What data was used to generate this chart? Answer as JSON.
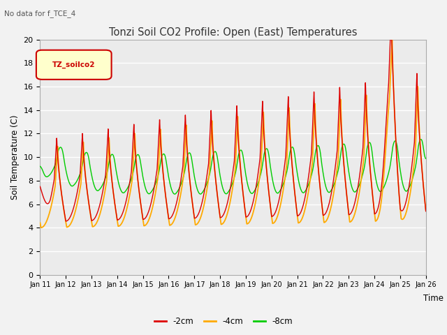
{
  "title": "Tonzi Soil CO2 Profile: Open (East) Temperatures",
  "subtitle": "No data for f_TCE_4",
  "ylabel": "Soil Temperature (C)",
  "xlabel": "Time",
  "ylim": [
    0,
    20
  ],
  "yticks": [
    0,
    2,
    4,
    6,
    8,
    10,
    12,
    14,
    16,
    18,
    20
  ],
  "xtick_labels": [
    "Jan 11",
    "Jan 12",
    "Jan 13",
    "Jan 14",
    "Jan 15",
    "Jan 16",
    "Jan 17",
    "Jan 18",
    "Jan 19",
    "Jan 20",
    "Jan 21",
    "Jan 22",
    "Jan 23",
    "Jan 24",
    "Jan 25",
    "Jan 26"
  ],
  "legend_label": "TZ_soilco2",
  "series_labels": [
    "-2cm",
    "-4cm",
    "-8cm"
  ],
  "series_colors": [
    "#dd0000",
    "#ffaa00",
    "#00cc00"
  ],
  "bg_color": "#e8e8e8",
  "plot_bg_color": "#ebebeb",
  "grid_color": "#ffffff",
  "title_fontsize": 11,
  "subtitle_fontsize": 8,
  "legend_box_color": "#ffffcc",
  "legend_box_edge": "#cc0000"
}
